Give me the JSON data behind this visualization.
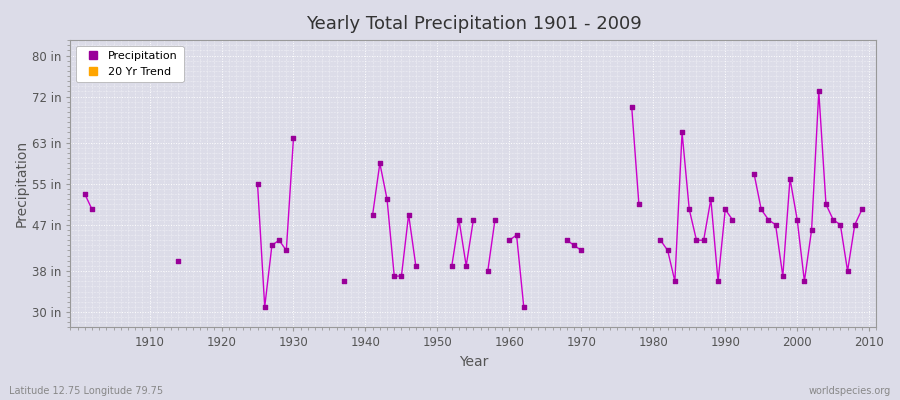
{
  "title": "Yearly Total Precipitation 1901 - 2009",
  "xlabel": "Year",
  "ylabel": "Precipitation",
  "footnote_left": "Latitude 12.75 Longitude 79.75",
  "footnote_right": "worldspecies.org",
  "yticks": [
    30,
    38,
    47,
    55,
    63,
    72,
    80
  ],
  "ytick_labels": [
    "30 in",
    "38 in",
    "47 in",
    "55 in",
    "63 in",
    "72 in",
    "80 in"
  ],
  "ylim": [
    27,
    83
  ],
  "xlim": [
    1899,
    2011
  ],
  "xticks": [
    1910,
    1920,
    1930,
    1940,
    1950,
    1960,
    1970,
    1980,
    1990,
    2000,
    2010
  ],
  "bg_color": "#dcdce8",
  "plot_bg_color": "#dcdce8",
  "line_color": "#cc00cc",
  "marker_color": "#990099",
  "trend_color": "#ffa500",
  "grid_color": "#ffffff",
  "segments": [
    {
      "years": [
        1901,
        1902
      ],
      "precip": [
        53,
        50
      ]
    },
    {
      "years": [
        1914
      ],
      "precip": [
        40
      ]
    },
    {
      "years": [
        1925,
        1926,
        1927,
        1928,
        1929,
        1930
      ],
      "precip": [
        55,
        31,
        43,
        44,
        42,
        64
      ]
    },
    {
      "years": [
        1937
      ],
      "precip": [
        36
      ]
    },
    {
      "years": [
        1941,
        1942,
        1943,
        1944,
        1945,
        1946,
        1947
      ],
      "precip": [
        49,
        59,
        52,
        37,
        37,
        49,
        39
      ]
    },
    {
      "years": [
        1952,
        1953,
        1954,
        1955
      ],
      "precip": [
        39,
        48,
        39,
        48
      ]
    },
    {
      "years": [
        1957,
        1958
      ],
      "precip": [
        38,
        48
      ]
    },
    {
      "years": [
        1960,
        1961,
        1962
      ],
      "precip": [
        44,
        45,
        31
      ]
    },
    {
      "years": [
        1968,
        1969,
        1970
      ],
      "precip": [
        44,
        43,
        42
      ]
    },
    {
      "years": [
        1977,
        1978
      ],
      "precip": [
        70,
        51
      ]
    },
    {
      "years": [
        1981,
        1982,
        1983,
        1984,
        1985,
        1986,
        1987,
        1988,
        1989,
        1990,
        1991
      ],
      "precip": [
        44,
        42,
        36,
        65,
        50,
        44,
        44,
        52,
        36,
        50,
        48
      ]
    },
    {
      "years": [
        1994,
        1995,
        1996,
        1997,
        1998,
        1999,
        2000,
        2001,
        2002,
        2003,
        2004,
        2005,
        2006,
        2007,
        2008,
        2009
      ],
      "precip": [
        57,
        50,
        48,
        47,
        37,
        56,
        48,
        36,
        46,
        73,
        51,
        48,
        47,
        38,
        47,
        50
      ]
    }
  ]
}
